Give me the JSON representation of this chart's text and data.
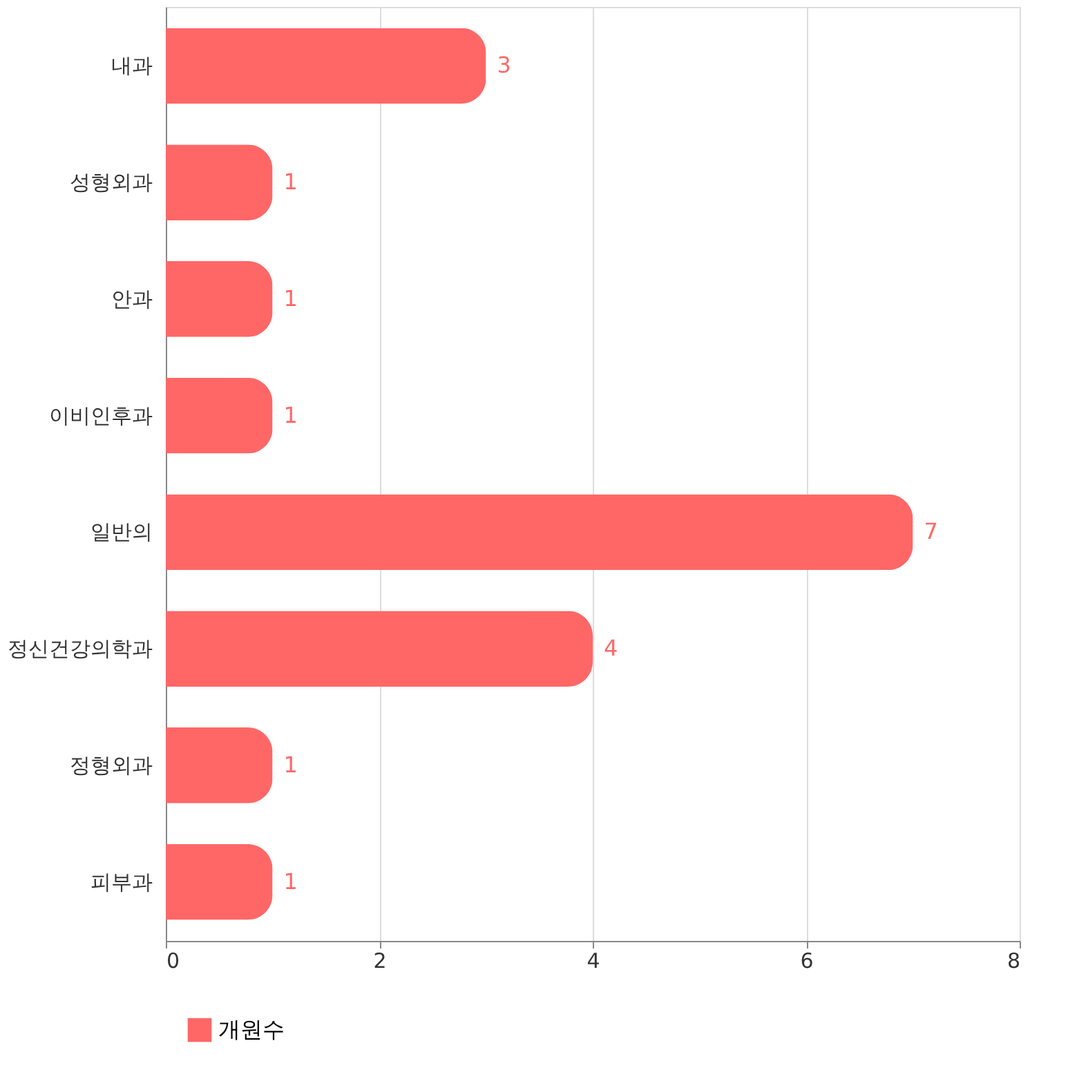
{
  "chart_data": {
    "type": "bar",
    "orientation": "horizontal",
    "categories": [
      "내과",
      "성형외과",
      "안과",
      "이비인후과",
      "일반의",
      "정신건강의학과",
      "정형외과",
      "피부과"
    ],
    "series": [
      {
        "name": "개원수",
        "color": "#ff6767",
        "values": [
          3,
          1,
          1,
          1,
          7,
          4,
          1,
          1
        ]
      }
    ],
    "xlim": [
      0,
      8
    ],
    "xticks": [
      0,
      2,
      4,
      6,
      8
    ],
    "grid": "x",
    "legend": "bottom",
    "data_labels": true
  }
}
